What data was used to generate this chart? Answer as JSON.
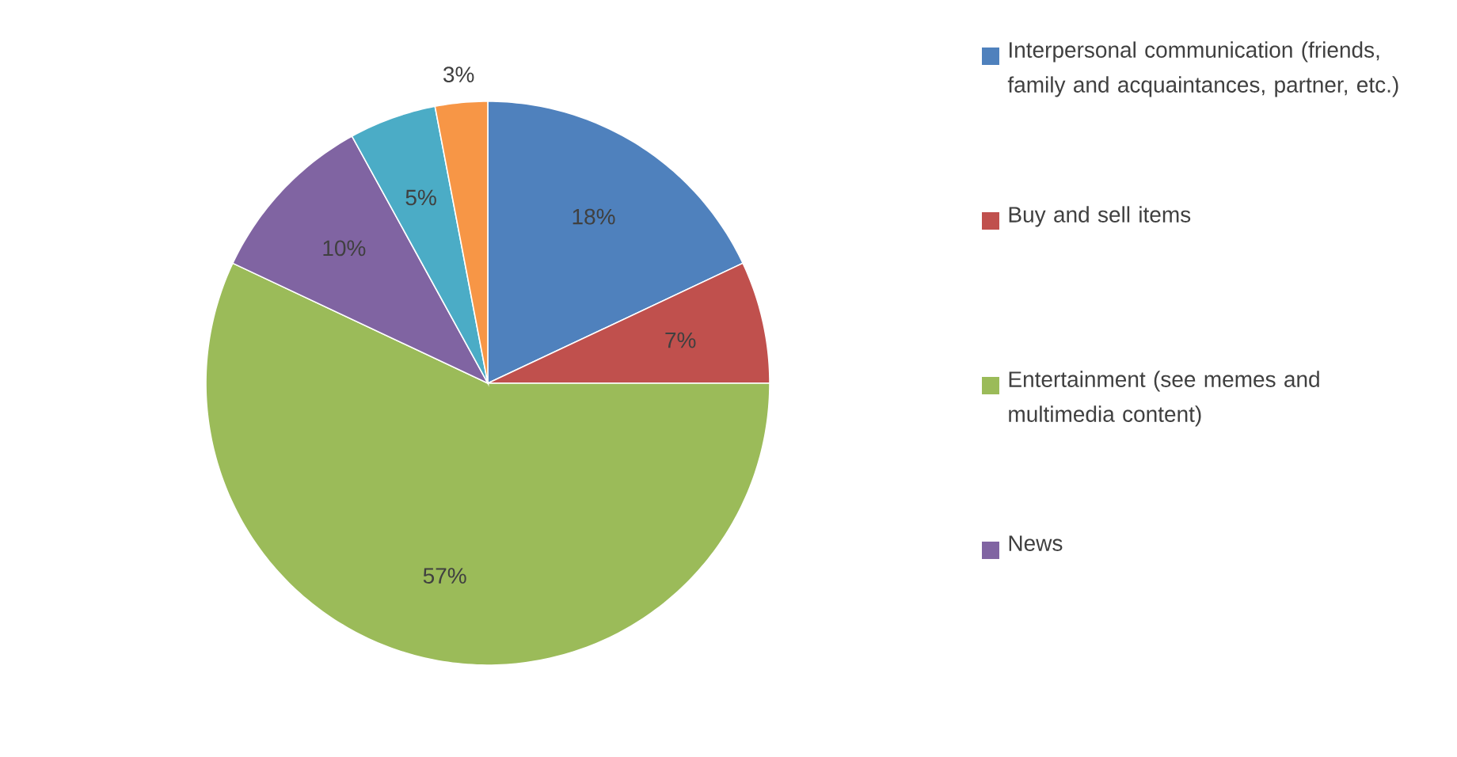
{
  "chart_data": {
    "type": "pie",
    "categories": [
      "Interpersonal communication (friends, family and acquaintances, partner, etc.)",
      "Buy and sell items",
      "Entertainment (see memes and multimedia content)",
      "News",
      null,
      null
    ],
    "values": [
      18,
      7,
      57,
      10,
      5,
      3
    ],
    "value_labels": [
      "18%",
      "7%",
      "57%",
      "10%",
      "5%",
      "3%"
    ],
    "colors": [
      "#4f81bd",
      "#c0504d",
      "#9bbb59",
      "#8064a2",
      "#4bacc6",
      "#f79646"
    ],
    "legend": "right"
  }
}
